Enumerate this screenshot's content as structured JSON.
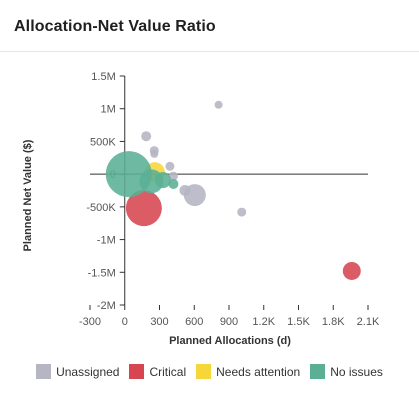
{
  "card": {
    "title": "Allocation-Net Value Ratio"
  },
  "chart_data": {
    "type": "scatter",
    "title": "Allocation-Net Value Ratio",
    "xlabel": "Planned Allocations (d)",
    "ylabel": "Planned Net Value ($)",
    "xlim": [
      -300,
      2100
    ],
    "ylim": [
      -2000000,
      1500000
    ],
    "x_ticks": [
      {
        "value": -300,
        "label": "-300"
      },
      {
        "value": 0,
        "label": "0"
      },
      {
        "value": 300,
        "label": "300"
      },
      {
        "value": 600,
        "label": "600"
      },
      {
        "value": 900,
        "label": "900"
      },
      {
        "value": 1200,
        "label": "1.2K"
      },
      {
        "value": 1500,
        "label": "1.5K"
      },
      {
        "value": 1800,
        "label": "1.8K"
      },
      {
        "value": 2100,
        "label": "2.1K"
      }
    ],
    "y_ticks": [
      {
        "value": 1500000,
        "label": "1.5M"
      },
      {
        "value": 1000000,
        "label": "1M"
      },
      {
        "value": 500000,
        "label": "500K"
      },
      {
        "value": 0,
        "label": "0"
      },
      {
        "value": -500000,
        "label": "-500K"
      },
      {
        "value": -1000000,
        "label": "-1M"
      },
      {
        "value": -1500000,
        "label": "-1.5M"
      },
      {
        "value": -2000000,
        "label": "-2M"
      }
    ],
    "legend_position": "bottom",
    "series": [
      {
        "name": "Unassigned",
        "color": "#b5b5c3",
        "points": [
          {
            "x": 810,
            "y": 1060000,
            "size": 8
          },
          {
            "x": 185,
            "y": 580000,
            "size": 10
          },
          {
            "x": 255,
            "y": 360000,
            "size": 9
          },
          {
            "x": 255,
            "y": 310000,
            "size": 8
          },
          {
            "x": 390,
            "y": 120000,
            "size": 9
          },
          {
            "x": 420,
            "y": -30000,
            "size": 9
          },
          {
            "x": 520,
            "y": -250000,
            "size": 11
          },
          {
            "x": 605,
            "y": -320000,
            "size": 22
          },
          {
            "x": 1010,
            "y": -580000,
            "size": 9
          }
        ]
      },
      {
        "name": "Critical",
        "color": "#d64550",
        "points": [
          {
            "x": 165,
            "y": -520000,
            "size": 36
          },
          {
            "x": 1960,
            "y": -1480000,
            "size": 18
          }
        ]
      },
      {
        "name": "Needs attention",
        "color": "#f7d63a",
        "points": [
          {
            "x": 260,
            "y": 30000,
            "size": 20
          }
        ]
      },
      {
        "name": "No issues",
        "color": "#5aaf95",
        "points": [
          {
            "x": 35,
            "y": 0,
            "size": 46
          },
          {
            "x": 230,
            "y": -110000,
            "size": 24
          },
          {
            "x": 330,
            "y": -90000,
            "size": 16
          },
          {
            "x": 420,
            "y": -150000,
            "size": 10
          }
        ]
      }
    ]
  }
}
